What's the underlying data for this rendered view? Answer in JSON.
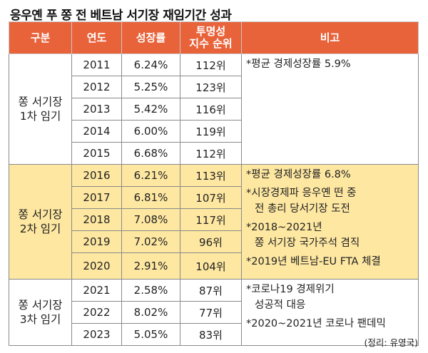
{
  "title": "응우옌 푸 쫑 전 베트남 서기장 재임기간 성과",
  "headers": {
    "group": "구분",
    "year": "연도",
    "growth": "성장률",
    "rank_line1": "투명성",
    "rank_line2": "지수 순위",
    "note": "비고"
  },
  "terms": [
    {
      "label_line1": "쫑 서기장",
      "label_line2": "1차 임기",
      "rows": [
        {
          "year": "2011",
          "growth": "6.24%",
          "rank": "112위"
        },
        {
          "year": "2012",
          "growth": "5.25%",
          "rank": "123위"
        },
        {
          "year": "2013",
          "growth": "5.42%",
          "rank": "116위"
        },
        {
          "year": "2014",
          "growth": "6.00%",
          "rank": "119위"
        },
        {
          "year": "2015",
          "growth": "6.68%",
          "rank": "112위"
        }
      ],
      "notes": [
        "*평균 경제성장률 5.9%"
      ]
    },
    {
      "label_line1": "쫑 서기장",
      "label_line2": "2차 임기",
      "rows": [
        {
          "year": "2016",
          "growth": "6.21%",
          "rank": "113위"
        },
        {
          "year": "2017",
          "growth": "6.81%",
          "rank": "107위"
        },
        {
          "year": "2018",
          "growth": "7.08%",
          "rank": "117위"
        },
        {
          "year": "2019",
          "growth": "7.02%",
          "rank": "96위"
        },
        {
          "year": "2020",
          "growth": "2.91%",
          "rank": "104위"
        }
      ],
      "notes": [
        "*평균 경제성장률 6.8%",
        "*시장경제파 응우옌 떤 중",
        "전 총리 당서기장 도전",
        "*2018~2021년",
        "쫑 서기장 국가주석 겸직",
        "*2019년 베트남-EU FTA 체결"
      ]
    },
    {
      "label_line1": "쫑 서기장",
      "label_line2": "3차 임기",
      "rows": [
        {
          "year": "2021",
          "growth": "2.58%",
          "rank": "87위"
        },
        {
          "year": "2022",
          "growth": "8.02%",
          "rank": "77위"
        },
        {
          "year": "2023",
          "growth": "5.05%",
          "rank": "83위"
        }
      ],
      "notes": [
        "*코로나19 경제위기",
        "성공적 대응",
        "*2020~2021년 코로나 팬데믹"
      ]
    }
  ],
  "source": "(정리: 유영국)",
  "colors": {
    "header": "#e8623a",
    "highlight": "#fde7a1"
  }
}
